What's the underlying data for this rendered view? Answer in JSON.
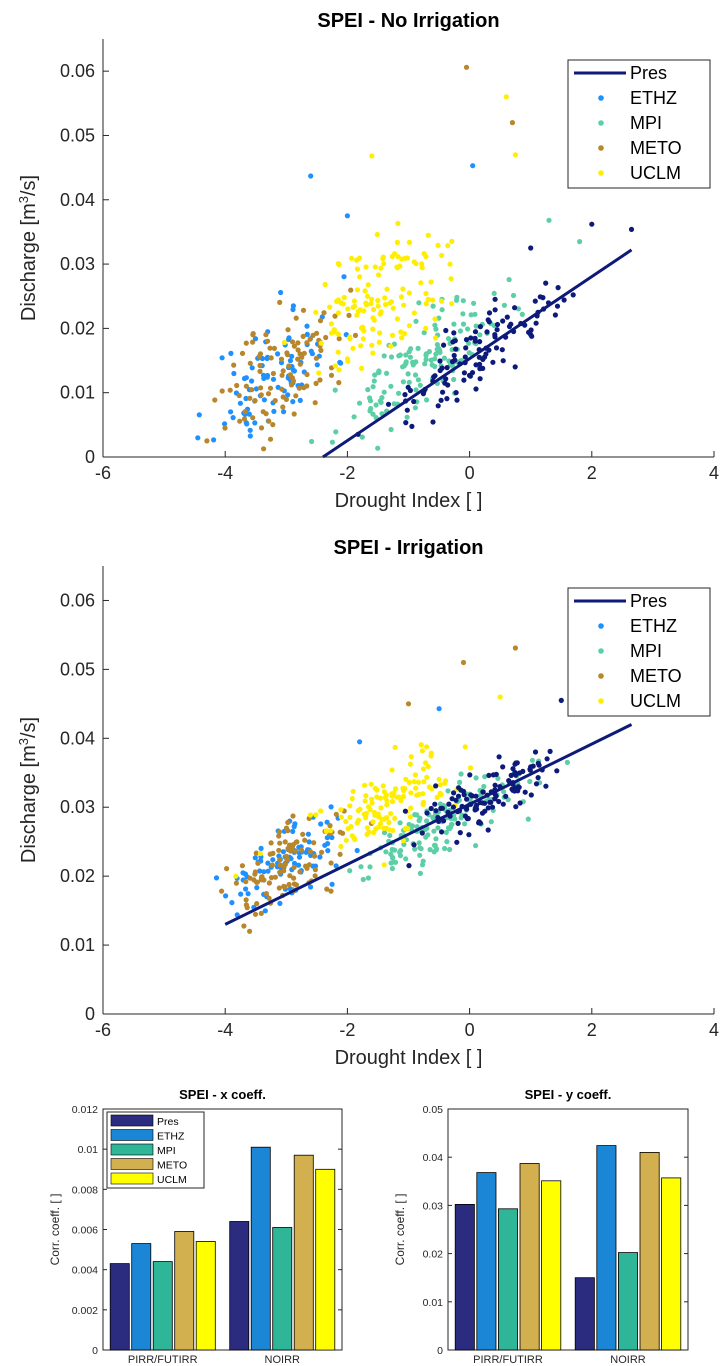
{
  "chart_data": [
    {
      "type": "scatter",
      "title": "SPEI - No Irrigation",
      "xlabel": "Drought Index [ ]",
      "ylabel": "Discharge [m",
      "ylabel_sup": "3",
      "ylabel_tail": "/s]",
      "xlim": [
        -6,
        4
      ],
      "ylim": [
        0,
        0.065
      ],
      "xticks": [
        -6,
        -4,
        -2,
        0,
        2,
        4
      ],
      "yticks": [
        0,
        0.01,
        0.02,
        0.03,
        0.04,
        0.05,
        0.06
      ],
      "grid": false,
      "legend_position": "top-right",
      "fit_line": {
        "name": "Pres",
        "x": [
          -2.4,
          2.65
        ],
        "y": [
          -0.0005,
          0.0322
        ],
        "color": "#0d1a7a"
      },
      "series": [
        {
          "name": "ETHZ",
          "color": "#1e90ff",
          "center": [
            -3.2,
            0.013
          ],
          "spread": [
            0.9,
            0.008
          ],
          "slope": 0.0055,
          "count": 90,
          "seed": 11,
          "points": [
            {
              "x": -2.6,
              "y": 0.0437
            },
            {
              "x": 0.05,
              "y": 0.0453
            },
            {
              "x": -2.0,
              "y": 0.0375
            }
          ]
        },
        {
          "name": "MPI",
          "color": "#5ccfa6",
          "center": [
            -0.8,
            0.014
          ],
          "spread": [
            1.2,
            0.006
          ],
          "slope": 0.006,
          "count": 140,
          "seed": 23,
          "points": [
            {
              "x": 1.8,
              "y": 0.0335
            },
            {
              "x": 1.3,
              "y": 0.0368
            }
          ]
        },
        {
          "name": "METO",
          "color": "#b8862b",
          "center": [
            -3.0,
            0.014
          ],
          "spread": [
            0.9,
            0.008
          ],
          "slope": 0.006,
          "count": 100,
          "seed": 37,
          "points": [
            {
              "x": -0.05,
              "y": 0.0606
            },
            {
              "x": 0.7,
              "y": 0.052
            },
            {
              "x": -4.3,
              "y": 0.0025
            }
          ]
        },
        {
          "name": "UCLM",
          "color": "#ffee00",
          "center": [
            -1.5,
            0.024
          ],
          "spread": [
            1.1,
            0.009
          ],
          "slope": 0.005,
          "count": 130,
          "seed": 51,
          "points": [
            {
              "x": 0.6,
              "y": 0.056
            },
            {
              "x": 0.75,
              "y": 0.047
            },
            {
              "x": -1.6,
              "y": 0.0468
            }
          ]
        },
        {
          "name": "Pres",
          "color": "#0d1a7a",
          "center": [
            0.1,
            0.0155
          ],
          "spread": [
            1.2,
            0.005
          ],
          "slope": 0.0064,
          "count": 110,
          "seed": 67,
          "points": [
            {
              "x": 2.65,
              "y": 0.0354
            },
            {
              "x": 2.0,
              "y": 0.0362
            },
            {
              "x": 1.0,
              "y": 0.0325
            }
          ]
        }
      ],
      "legend": [
        "Pres",
        "ETHZ",
        "MPI",
        "METO",
        "UCLM"
      ]
    },
    {
      "type": "scatter",
      "title": "SPEI - Irrigation",
      "xlabel": "Drought Index [ ]",
      "ylabel": "Discharge [m",
      "ylabel_sup": "3",
      "ylabel_tail": "/s]",
      "xlim": [
        -6,
        4
      ],
      "ylim": [
        0,
        0.065
      ],
      "xticks": [
        -6,
        -4,
        -2,
        0,
        2,
        4
      ],
      "yticks": [
        0,
        0.01,
        0.02,
        0.03,
        0.04,
        0.05,
        0.06
      ],
      "grid": false,
      "legend_position": "top-right",
      "fit_line": {
        "name": "Pres",
        "x": [
          -4.0,
          2.65
        ],
        "y": [
          0.013,
          0.042
        ],
        "color": "#0d1a7a"
      },
      "series": [
        {
          "name": "ETHZ",
          "color": "#1e90ff",
          "center": [
            -3.0,
            0.022
          ],
          "spread": [
            0.9,
            0.005
          ],
          "slope": 0.0045,
          "count": 95,
          "seed": 13,
          "points": [
            {
              "x": -0.5,
              "y": 0.0443
            },
            {
              "x": -1.8,
              "y": 0.0395
            }
          ]
        },
        {
          "name": "MPI",
          "color": "#5ccfa6",
          "center": [
            -0.6,
            0.027
          ],
          "spread": [
            1.2,
            0.004
          ],
          "slope": 0.0045,
          "count": 140,
          "seed": 29,
          "points": [
            {
              "x": 1.6,
              "y": 0.0365
            }
          ]
        },
        {
          "name": "METO",
          "color": "#b8862b",
          "center": [
            -2.9,
            0.022
          ],
          "spread": [
            0.9,
            0.005
          ],
          "slope": 0.0045,
          "count": 100,
          "seed": 41,
          "points": [
            {
              "x": -0.1,
              "y": 0.051
            },
            {
              "x": 0.75,
              "y": 0.0531
            },
            {
              "x": -1.0,
              "y": 0.045
            },
            {
              "x": -3.6,
              "y": 0.012
            }
          ]
        },
        {
          "name": "UCLM",
          "color": "#ffee00",
          "center": [
            -1.4,
            0.03
          ],
          "spread": [
            1.1,
            0.005
          ],
          "slope": 0.004,
          "count": 130,
          "seed": 57,
          "points": [
            {
              "x": 0.5,
              "y": 0.046
            },
            {
              "x": 2.2,
              "y": 0.0553
            }
          ]
        },
        {
          "name": "Pres",
          "color": "#0d1a7a",
          "center": [
            0.3,
            0.0315
          ],
          "spread": [
            1.1,
            0.004
          ],
          "slope": 0.0042,
          "count": 120,
          "seed": 71,
          "points": [
            {
              "x": 2.65,
              "y": 0.0455
            },
            {
              "x": 1.5,
              "y": 0.0455
            }
          ]
        }
      ],
      "legend": [
        "Pres",
        "ETHZ",
        "MPI",
        "METO",
        "UCLM"
      ]
    },
    {
      "type": "bar",
      "title": "SPEI - x coeff.",
      "xlabel": "",
      "ylabel": "Corr. coeff. [ ]",
      "categories": [
        "PIRR/FUTIRR",
        "NOIRR"
      ],
      "ylim": [
        0,
        0.012
      ],
      "yticks": [
        0,
        0.002,
        0.004,
        0.006,
        0.008,
        0.01,
        0.012
      ],
      "legend_position": "top-left",
      "series": [
        {
          "name": "Pres",
          "color": "#2b2c80",
          "values": [
            0.0043,
            0.0064
          ]
        },
        {
          "name": "ETHZ",
          "color": "#1b86d6",
          "values": [
            0.0053,
            0.0101
          ]
        },
        {
          "name": "MPI",
          "color": "#2fb598",
          "values": [
            0.0044,
            0.0061
          ]
        },
        {
          "name": "METO",
          "color": "#d2b050",
          "values": [
            0.0059,
            0.0097
          ]
        },
        {
          "name": "UCLM",
          "color": "#ffff00",
          "values": [
            0.0054,
            0.009
          ]
        }
      ]
    },
    {
      "type": "bar",
      "title": "SPEI - y coeff.",
      "xlabel": "",
      "ylabel": "Corr. coeff. [ ]",
      "categories": [
        "PIRR/FUTIRR",
        "NOIRR"
      ],
      "ylim": [
        0,
        0.05
      ],
      "yticks": [
        0,
        0.01,
        0.02,
        0.03,
        0.04,
        0.05
      ],
      "series": [
        {
          "name": "Pres",
          "color": "#2b2c80",
          "values": [
            0.0302,
            0.015
          ]
        },
        {
          "name": "ETHZ",
          "color": "#1b86d6",
          "values": [
            0.0368,
            0.0424
          ]
        },
        {
          "name": "MPI",
          "color": "#2fb598",
          "values": [
            0.0293,
            0.0202
          ]
        },
        {
          "name": "METO",
          "color": "#d2b050",
          "values": [
            0.0387,
            0.041
          ]
        },
        {
          "name": "UCLM",
          "color": "#ffff00",
          "values": [
            0.0351,
            0.0357
          ]
        }
      ]
    }
  ]
}
